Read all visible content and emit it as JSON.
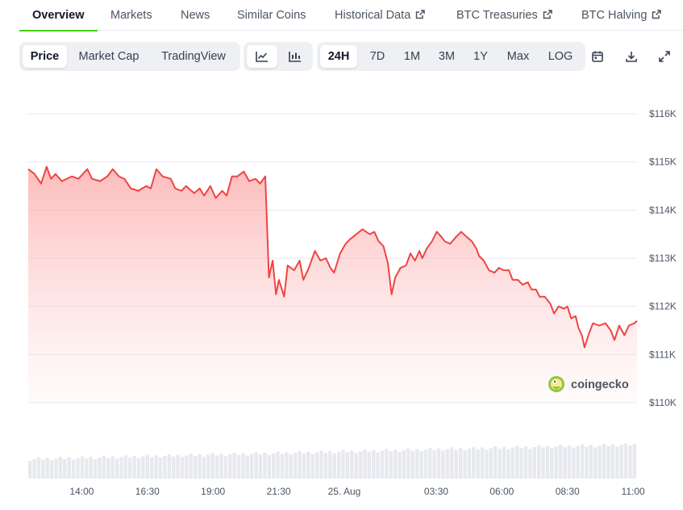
{
  "tabs": [
    {
      "label": "Overview"
    },
    {
      "label": "Markets"
    },
    {
      "label": "News"
    },
    {
      "label": "Similar Coins"
    },
    {
      "label": "Historical Data"
    },
    {
      "label": "BTC Treasuries"
    },
    {
      "label": "BTC Halving"
    }
  ],
  "toolbar": {
    "views": [
      "Price",
      "Market Cap",
      "TradingView"
    ],
    "chart_types": [
      "line-chart-icon",
      "candlestick-icon"
    ],
    "ranges": [
      "24H",
      "7D",
      "1M",
      "3M",
      "1Y",
      "Max"
    ],
    "log_label": "LOG",
    "tools": [
      "calendar-icon",
      "download-icon",
      "expand-icon"
    ]
  },
  "watermark": "coingecko",
  "colors": {
    "accent": "#4bcc00",
    "line": "#ef4444",
    "fill": "#fecaca"
  },
  "chart_data": {
    "type": "area",
    "title": "",
    "xlabel": "",
    "ylabel": "",
    "y_ticks": [
      "$116K",
      "$115K",
      "$114K",
      "$113K",
      "$112K",
      "$111K",
      "$110K"
    ],
    "y_tick_values": [
      116000,
      115000,
      114000,
      113000,
      112000,
      111000,
      110000
    ],
    "ylim": [
      110000,
      116000
    ],
    "x_ticks": [
      "14:00",
      "16:30",
      "19:00",
      "21:30",
      "25. Aug",
      "03:30",
      "06:00",
      "08:30",
      "11:00"
    ],
    "x_tick_hours": [
      14,
      16.5,
      19,
      21.5,
      24,
      27.5,
      30,
      32.5,
      35
    ],
    "grid": true,
    "series": [
      {
        "name": "",
        "points": [
          [
            11.96,
            114850
          ],
          [
            12.2,
            114750
          ],
          [
            12.45,
            114550
          ],
          [
            12.66,
            114900
          ],
          [
            12.83,
            114650
          ],
          [
            13.0,
            114750
          ],
          [
            13.24,
            114600
          ],
          [
            13.62,
            114700
          ],
          [
            13.87,
            114650
          ],
          [
            14.21,
            114850
          ],
          [
            14.39,
            114650
          ],
          [
            14.7,
            114600
          ],
          [
            14.97,
            114700
          ],
          [
            15.18,
            114850
          ],
          [
            15.42,
            114700
          ],
          [
            15.62,
            114650
          ],
          [
            15.87,
            114450
          ],
          [
            16.15,
            114400
          ],
          [
            16.46,
            114500
          ],
          [
            16.63,
            114450
          ],
          [
            16.84,
            114850
          ],
          [
            17.08,
            114700
          ],
          [
            17.39,
            114650
          ],
          [
            17.56,
            114450
          ],
          [
            17.8,
            114400
          ],
          [
            17.97,
            114500
          ],
          [
            18.28,
            114350
          ],
          [
            18.49,
            114450
          ],
          [
            18.66,
            114300
          ],
          [
            18.9,
            114500
          ],
          [
            19.1,
            114250
          ],
          [
            19.35,
            114400
          ],
          [
            19.52,
            114300
          ],
          [
            19.72,
            114700
          ],
          [
            19.93,
            114700
          ],
          [
            20.17,
            114800
          ],
          [
            20.38,
            114600
          ],
          [
            20.62,
            114650
          ],
          [
            20.79,
            114550
          ],
          [
            20.99,
            114700
          ],
          [
            21.13,
            112600
          ],
          [
            21.27,
            112950
          ],
          [
            21.4,
            112250
          ],
          [
            21.51,
            112550
          ],
          [
            21.71,
            112200
          ],
          [
            21.84,
            112850
          ],
          [
            22.09,
            112750
          ],
          [
            22.3,
            112950
          ],
          [
            22.44,
            112550
          ],
          [
            22.65,
            112800
          ],
          [
            22.88,
            113150
          ],
          [
            23.09,
            112950
          ],
          [
            23.3,
            113000
          ],
          [
            23.47,
            112800
          ],
          [
            23.61,
            112700
          ],
          [
            23.84,
            113100
          ],
          [
            24.05,
            113300
          ],
          [
            24.23,
            113400
          ],
          [
            24.46,
            113500
          ],
          [
            24.69,
            113600
          ],
          [
            24.97,
            113500
          ],
          [
            25.14,
            113550
          ],
          [
            25.31,
            113350
          ],
          [
            25.49,
            113250
          ],
          [
            25.66,
            112900
          ],
          [
            25.8,
            112250
          ],
          [
            25.94,
            112600
          ],
          [
            26.14,
            112800
          ],
          [
            26.35,
            112850
          ],
          [
            26.52,
            113100
          ],
          [
            26.69,
            112950
          ],
          [
            26.86,
            113150
          ],
          [
            26.97,
            113000
          ],
          [
            27.14,
            113200
          ],
          [
            27.34,
            113350
          ],
          [
            27.52,
            113550
          ],
          [
            27.69,
            113450
          ],
          [
            27.83,
            113350
          ],
          [
            28.03,
            113300
          ],
          [
            28.27,
            113450
          ],
          [
            28.45,
            113550
          ],
          [
            28.65,
            113450
          ],
          [
            28.86,
            113350
          ],
          [
            29.03,
            113200
          ],
          [
            29.13,
            113050
          ],
          [
            29.31,
            112950
          ],
          [
            29.51,
            112750
          ],
          [
            29.72,
            112700
          ],
          [
            29.89,
            112800
          ],
          [
            30.06,
            112750
          ],
          [
            30.27,
            112750
          ],
          [
            30.41,
            112550
          ],
          [
            30.61,
            112550
          ],
          [
            30.79,
            112450
          ],
          [
            30.99,
            112500
          ],
          [
            31.13,
            112350
          ],
          [
            31.3,
            112350
          ],
          [
            31.44,
            112200
          ],
          [
            31.64,
            112200
          ],
          [
            31.85,
            112050
          ],
          [
            31.99,
            111850
          ],
          [
            32.16,
            112000
          ],
          [
            32.37,
            111950
          ],
          [
            32.5,
            112000
          ],
          [
            32.64,
            111750
          ],
          [
            32.81,
            111800
          ],
          [
            32.92,
            111550
          ],
          [
            33.05,
            111400
          ],
          [
            33.15,
            111150
          ],
          [
            33.33,
            111450
          ],
          [
            33.47,
            111650
          ],
          [
            33.71,
            111600
          ],
          [
            33.95,
            111650
          ],
          [
            34.15,
            111500
          ],
          [
            34.29,
            111300
          ],
          [
            34.47,
            111600
          ],
          [
            34.67,
            111400
          ],
          [
            34.84,
            111600
          ],
          [
            35.05,
            111650
          ],
          [
            35.15,
            111700
          ]
        ]
      }
    ]
  }
}
